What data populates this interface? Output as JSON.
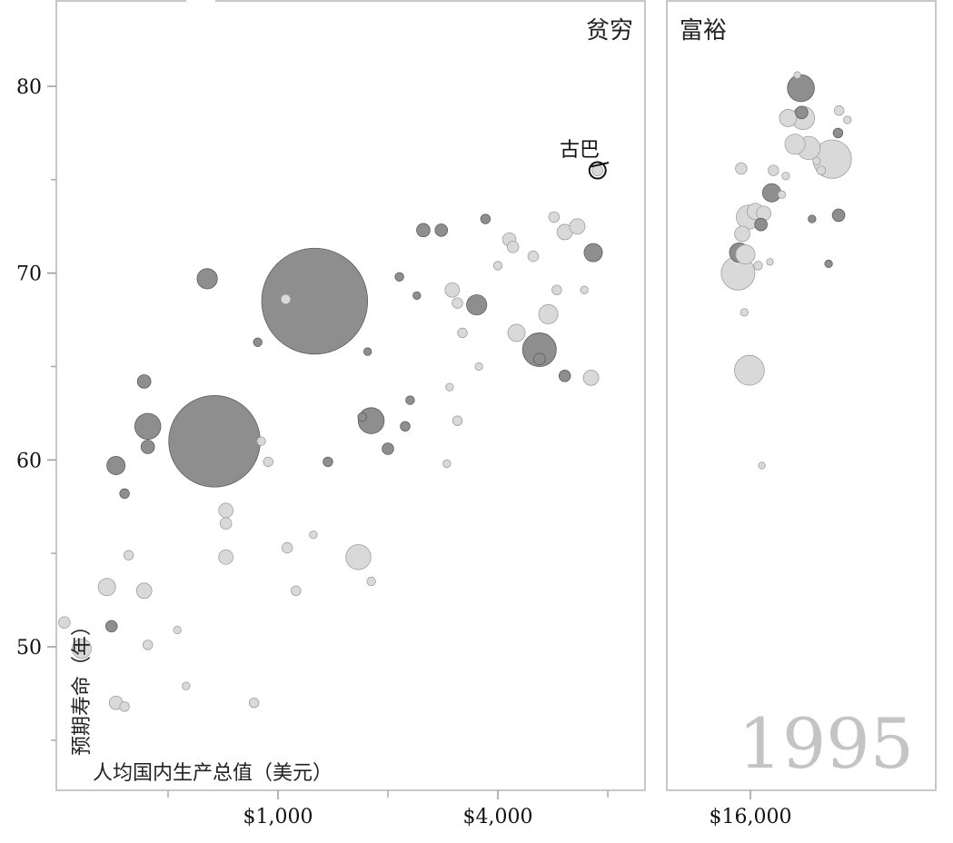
{
  "chart_data": {
    "type": "scatter",
    "title": "",
    "panels": [
      {
        "label": "贫穷"
      },
      {
        "label": "富裕"
      }
    ],
    "xlabel": "人均国内生产总值（美元）",
    "ylabel": "预期寿命（年）",
    "xscale": "log",
    "xlim": [
      250,
      30000
    ],
    "ylim": [
      43,
      84
    ],
    "xticks": [
      {
        "value": 1000,
        "label": "$1,000"
      },
      {
        "value": 4000,
        "label": "$4,000"
      },
      {
        "value": 16000,
        "label": "$16,000"
      }
    ],
    "yticks": [
      {
        "value": 50,
        "label": "50"
      },
      {
        "value": 60,
        "label": "60"
      },
      {
        "value": 70,
        "label": "70"
      },
      {
        "value": 80,
        "label": "80"
      }
    ],
    "year": "1995",
    "annotation": {
      "text": "古巴",
      "x": 7500,
      "y": 75.5
    },
    "colors": {
      "dark": "#8e8e8e",
      "light": "#d9d9d9",
      "frame": "#c8c8c8",
      "year": "#c4c4c4"
    },
    "points": [
      {
        "x": 1260,
        "y": 68.5,
        "size": 11,
        "shade": "dark"
      },
      {
        "x": 670,
        "y": 61.0,
        "size": 9.5,
        "shade": "dark"
      },
      {
        "x": 5200,
        "y": 65.9,
        "size": 3.5,
        "shade": "dark"
      },
      {
        "x": 14800,
        "y": 70.0,
        "size": 3.5,
        "shade": "light"
      },
      {
        "x": 15900,
        "y": 64.8,
        "size": 3.1,
        "shade": "light"
      },
      {
        "x": 26800,
        "y": 76.1,
        "size": 4.0,
        "shade": "light"
      },
      {
        "x": 22000,
        "y": 79.9,
        "size": 2.8,
        "shade": "dark"
      },
      {
        "x": 1800,
        "y": 62.1,
        "size": 2.7,
        "shade": "dark"
      },
      {
        "x": 1660,
        "y": 54.8,
        "size": 2.6,
        "shade": "light"
      },
      {
        "x": 440,
        "y": 61.8,
        "size": 2.7,
        "shade": "dark"
      },
      {
        "x": 640,
        "y": 69.7,
        "size": 2.1,
        "shade": "dark"
      },
      {
        "x": 3500,
        "y": 68.3,
        "size": 2.1,
        "shade": "dark"
      },
      {
        "x": 5500,
        "y": 67.8,
        "size": 2.0,
        "shade": "light"
      },
      {
        "x": 4500,
        "y": 66.8,
        "size": 1.8,
        "shade": "light"
      },
      {
        "x": 7300,
        "y": 71.1,
        "size": 1.9,
        "shade": "dark"
      },
      {
        "x": 7200,
        "y": 64.4,
        "size": 1.6,
        "shade": "light"
      },
      {
        "x": 14900,
        "y": 71.1,
        "size": 2.0,
        "shade": "dark"
      },
      {
        "x": 15500,
        "y": 71.0,
        "size": 2.0,
        "shade": "light"
      },
      {
        "x": 15200,
        "y": 72.1,
        "size": 1.6,
        "shade": "light"
      },
      {
        "x": 15800,
        "y": 73.0,
        "size": 2.5,
        "shade": "light"
      },
      {
        "x": 16500,
        "y": 73.3,
        "size": 1.7,
        "shade": "light"
      },
      {
        "x": 17400,
        "y": 73.2,
        "size": 1.5,
        "shade": "light"
      },
      {
        "x": 18300,
        "y": 74.3,
        "size": 1.9,
        "shade": "dark"
      },
      {
        "x": 20300,
        "y": 78.3,
        "size": 1.8,
        "shade": "light"
      },
      {
        "x": 21200,
        "y": 76.9,
        "size": 2.1,
        "shade": "light"
      },
      {
        "x": 22300,
        "y": 78.3,
        "size": 2.4,
        "shade": "light"
      },
      {
        "x": 23100,
        "y": 76.7,
        "size": 2.4,
        "shade": "light"
      },
      {
        "x": 27900,
        "y": 73.1,
        "size": 1.3,
        "shade": "dark"
      },
      {
        "x": 17100,
        "y": 72.6,
        "size": 1.3,
        "shade": "dark"
      },
      {
        "x": 22100,
        "y": 78.6,
        "size": 1.3,
        "shade": "dark"
      },
      {
        "x": 360,
        "y": 59.7,
        "size": 1.9,
        "shade": "dark"
      },
      {
        "x": 260,
        "y": 51.3,
        "size": 1.2,
        "shade": "light"
      },
      {
        "x": 290,
        "y": 49.9,
        "size": 2.0,
        "shade": "light"
      },
      {
        "x": 340,
        "y": 53.2,
        "size": 1.8,
        "shade": "light"
      },
      {
        "x": 350,
        "y": 51.1,
        "size": 1.2,
        "shade": "dark"
      },
      {
        "x": 360,
        "y": 47.0,
        "size": 1.4,
        "shade": "light"
      },
      {
        "x": 430,
        "y": 53.0,
        "size": 1.6,
        "shade": "light"
      },
      {
        "x": 430,
        "y": 64.2,
        "size": 1.4,
        "shade": "dark"
      },
      {
        "x": 440,
        "y": 60.7,
        "size": 1.4,
        "shade": "dark"
      },
      {
        "x": 380,
        "y": 58.2,
        "size": 1.0,
        "shade": "dark"
      },
      {
        "x": 720,
        "y": 54.8,
        "size": 1.5,
        "shade": "light"
      },
      {
        "x": 720,
        "y": 57.3,
        "size": 1.5,
        "shade": "light"
      },
      {
        "x": 720,
        "y": 56.6,
        "size": 1.2,
        "shade": "light"
      },
      {
        "x": 2230,
        "y": 61.8,
        "size": 1.0,
        "shade": "dark"
      },
      {
        "x": 2000,
        "y": 60.6,
        "size": 1.2,
        "shade": "dark"
      },
      {
        "x": 2300,
        "y": 63.2,
        "size": 0.9,
        "shade": "dark"
      },
      {
        "x": 2150,
        "y": 69.8,
        "size": 0.9,
        "shade": "dark"
      },
      {
        "x": 2500,
        "y": 72.3,
        "size": 1.4,
        "shade": "dark"
      },
      {
        "x": 2800,
        "y": 72.3,
        "size": 1.3,
        "shade": "dark"
      },
      {
        "x": 3700,
        "y": 72.9,
        "size": 1.0,
        "shade": "dark"
      },
      {
        "x": 6100,
        "y": 64.5,
        "size": 1.2,
        "shade": "dark"
      },
      {
        "x": 3100,
        "y": 68.4,
        "size": 1.1,
        "shade": "light"
      },
      {
        "x": 3000,
        "y": 69.1,
        "size": 1.5,
        "shade": "light"
      },
      {
        "x": 3200,
        "y": 66.8,
        "size": 1.0,
        "shade": "light"
      },
      {
        "x": 3100,
        "y": 62.1,
        "size": 1.0,
        "shade": "light"
      },
      {
        "x": 3550,
        "y": 65.0,
        "size": 0.8,
        "shade": "light"
      },
      {
        "x": 4300,
        "y": 71.8,
        "size": 1.4,
        "shade": "light"
      },
      {
        "x": 5700,
        "y": 73.0,
        "size": 1.1,
        "shade": "light"
      },
      {
        "x": 6100,
        "y": 72.2,
        "size": 1.6,
        "shade": "light"
      },
      {
        "x": 6600,
        "y": 72.5,
        "size": 1.6,
        "shade": "light"
      },
      {
        "x": 5000,
        "y": 70.9,
        "size": 1.1,
        "shade": "light"
      },
      {
        "x": 4400,
        "y": 71.4,
        "size": 1.2,
        "shade": "light"
      },
      {
        "x": 5800,
        "y": 69.1,
        "size": 1.0,
        "shade": "light"
      },
      {
        "x": 6900,
        "y": 69.1,
        "size": 0.8,
        "shade": "light"
      },
      {
        "x": 5200,
        "y": 65.4,
        "size": 1.2,
        "shade": "dark"
      },
      {
        "x": 1370,
        "y": 59.9,
        "size": 1.0,
        "shade": "dark"
      },
      {
        "x": 1060,
        "y": 55.3,
        "size": 1.1,
        "shade": "light"
      },
      {
        "x": 1120,
        "y": 53.0,
        "size": 1.0,
        "shade": "light"
      },
      {
        "x": 940,
        "y": 59.9,
        "size": 1.0,
        "shade": "light"
      },
      {
        "x": 1800,
        "y": 53.5,
        "size": 0.9,
        "shade": "light"
      },
      {
        "x": 900,
        "y": 61.0,
        "size": 0.9,
        "shade": "light"
      },
      {
        "x": 880,
        "y": 66.3,
        "size": 0.9,
        "shade": "dark"
      },
      {
        "x": 1050,
        "y": 68.6,
        "size": 1.0,
        "shade": "light"
      },
      {
        "x": 2900,
        "y": 59.8,
        "size": 0.8,
        "shade": "light"
      },
      {
        "x": 2950,
        "y": 63.9,
        "size": 0.8,
        "shade": "light"
      },
      {
        "x": 440,
        "y": 50.1,
        "size": 1.0,
        "shade": "light"
      },
      {
        "x": 390,
        "y": 54.9,
        "size": 1.0,
        "shade": "light"
      },
      {
        "x": 380,
        "y": 46.8,
        "size": 1.0,
        "shade": "light"
      },
      {
        "x": 560,
        "y": 47.9,
        "size": 0.8,
        "shade": "light"
      },
      {
        "x": 530,
        "y": 50.9,
        "size": 0.8,
        "shade": "light"
      },
      {
        "x": 860,
        "y": 47.0,
        "size": 1.0,
        "shade": "light"
      },
      {
        "x": 1250,
        "y": 56.0,
        "size": 0.8,
        "shade": "light"
      },
      {
        "x": 1700,
        "y": 62.3,
        "size": 0.9,
        "shade": "dark"
      },
      {
        "x": 1760,
        "y": 65.8,
        "size": 0.8,
        "shade": "dark"
      },
      {
        "x": 2400,
        "y": 68.8,
        "size": 0.8,
        "shade": "dark"
      },
      {
        "x": 4000,
        "y": 70.4,
        "size": 0.9,
        "shade": "light"
      },
      {
        "x": 15400,
        "y": 67.9,
        "size": 0.8,
        "shade": "light"
      },
      {
        "x": 18500,
        "y": 75.5,
        "size": 1.1,
        "shade": "light"
      },
      {
        "x": 19500,
        "y": 74.2,
        "size": 0.8,
        "shade": "light"
      },
      {
        "x": 20000,
        "y": 75.2,
        "size": 0.8,
        "shade": "light"
      },
      {
        "x": 25000,
        "y": 75.5,
        "size": 0.9,
        "shade": "light"
      },
      {
        "x": 27800,
        "y": 77.5,
        "size": 1.0,
        "shade": "dark"
      },
      {
        "x": 28000,
        "y": 78.7,
        "size": 1.0,
        "shade": "light"
      },
      {
        "x": 29500,
        "y": 78.2,
        "size": 0.8,
        "shade": "light"
      },
      {
        "x": 17200,
        "y": 59.7,
        "size": 0.7,
        "shade": "light"
      },
      {
        "x": 18100,
        "y": 70.6,
        "size": 0.7,
        "shade": "light"
      },
      {
        "x": 15100,
        "y": 75.6,
        "size": 1.2,
        "shade": "light"
      },
      {
        "x": 16800,
        "y": 70.4,
        "size": 0.9,
        "shade": "light"
      },
      {
        "x": 21500,
        "y": 80.6,
        "size": 0.7,
        "shade": "light"
      },
      {
        "x": 24300,
        "y": 76.0,
        "size": 0.8,
        "shade": "light"
      },
      {
        "x": 26200,
        "y": 70.5,
        "size": 0.8,
        "shade": "dark"
      },
      {
        "x": 23600,
        "y": 72.9,
        "size": 0.8,
        "shade": "dark"
      }
    ]
  }
}
